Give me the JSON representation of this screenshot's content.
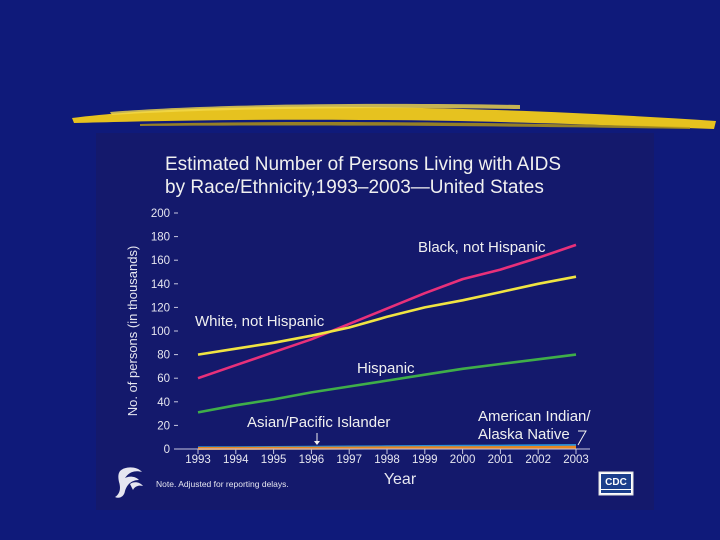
{
  "slide": {
    "background": "#0f1a7a",
    "panel_color": "#14196c",
    "brush_color": "#e6c21f"
  },
  "chart_data": {
    "type": "line",
    "title_line1": "Estimated Number of Persons Living with AIDS",
    "title_line2": "by Race/Ethnicity,1993–2003—United States",
    "xlabel": "Year",
    "ylabel": "No. of persons (in thousands)",
    "ylim": [
      0,
      200
    ],
    "yticks": [
      "0",
      "20",
      "40",
      "60",
      "80",
      "100",
      "120",
      "140",
      "160",
      "180",
      "200"
    ],
    "categories": [
      "1993",
      "1994",
      "1995",
      "1996",
      "1997",
      "1998",
      "1999",
      "2000",
      "2001",
      "2002",
      "2003"
    ],
    "series": [
      {
        "name": "Black, not Hispanic",
        "color": "#e8307a",
        "values": [
          60,
          71,
          82,
          93,
          106,
          119,
          132,
          144,
          152,
          162,
          173
        ]
      },
      {
        "name": "White, not Hispanic",
        "color": "#f0e442",
        "values": [
          80,
          85,
          90,
          96,
          103,
          112,
          120,
          126,
          133,
          140,
          146
        ]
      },
      {
        "name": "Hispanic",
        "color": "#3fae49",
        "values": [
          31,
          37,
          42,
          48,
          53,
          58,
          63,
          68,
          72,
          76,
          80
        ]
      },
      {
        "name": "Asian/Pacific Islander",
        "color": "#2b8fd6",
        "values": [
          1,
          1.1,
          1.3,
          1.5,
          1.7,
          1.9,
          2.1,
          2.3,
          2.5,
          2.7,
          3
        ]
      },
      {
        "name": "American Indian/\nAlaska Native",
        "color": "#e8861f",
        "values": [
          0.4,
          0.5,
          0.6,
          0.7,
          0.8,
          0.9,
          1,
          1.1,
          1.2,
          1.3,
          1.4
        ]
      }
    ],
    "labels": {
      "black": "Black, not Hispanic",
      "white": "White, not Hispanic",
      "hispanic": "Hispanic",
      "asian": "Asian/Pacific Islander",
      "amind_line1": "American Indian/",
      "amind_line2": "Alaska Native"
    },
    "note": "Note. Adjusted for reporting delays.",
    "logo_text": "CDC"
  }
}
